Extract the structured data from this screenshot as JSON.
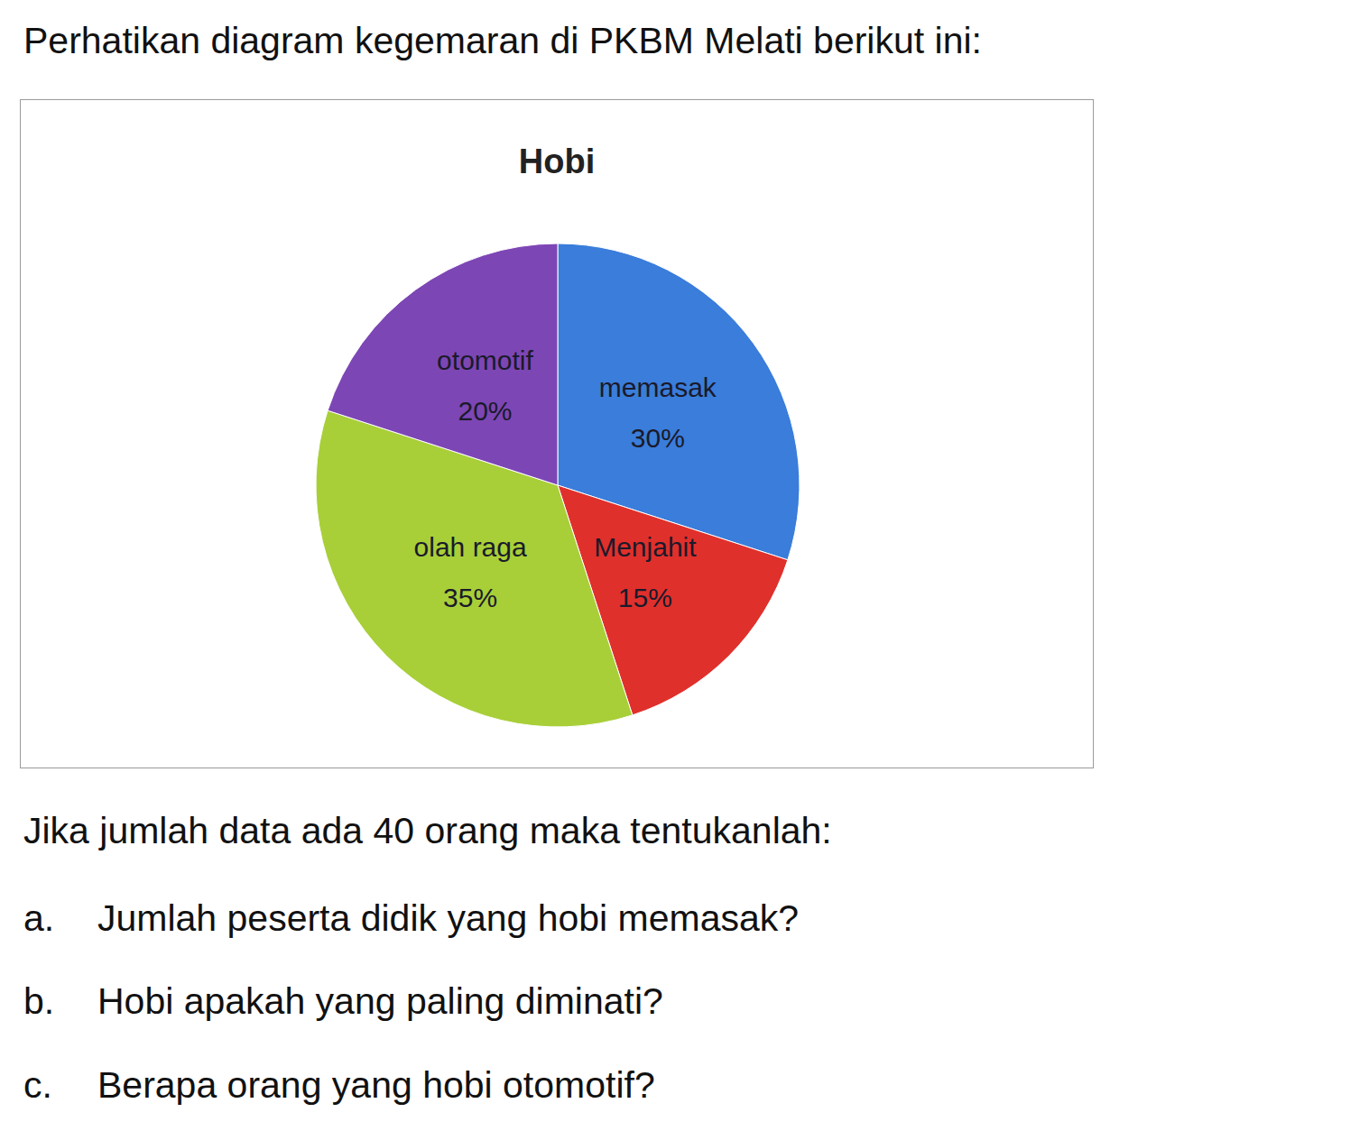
{
  "heading": "Perhatikan diagram kegemaran di PKBM Melati berikut ini:",
  "chart_data": {
    "type": "pie",
    "title": "Hobi",
    "categories": [
      "memasak",
      "Menjahit",
      "olah raga",
      "otomotif"
    ],
    "values": [
      30,
      15,
      35,
      20
    ],
    "value_labels": [
      "30%",
      "15%",
      "35%",
      "20%"
    ],
    "colors": [
      "#3a7ddb",
      "#e0302c",
      "#a8cf38",
      "#7d46b5"
    ],
    "data_labels": true
  },
  "prompt": "Jika jumlah data ada 40 orang maka tentukanlah:",
  "questions": [
    {
      "letter": "a.",
      "text": "Jumlah peserta didik yang hobi  memasak?"
    },
    {
      "letter": "b.",
      "text": "Hobi apakah yang paling diminati?"
    },
    {
      "letter": "c.",
      "text": "Berapa orang yang hobi otomotif?"
    }
  ]
}
